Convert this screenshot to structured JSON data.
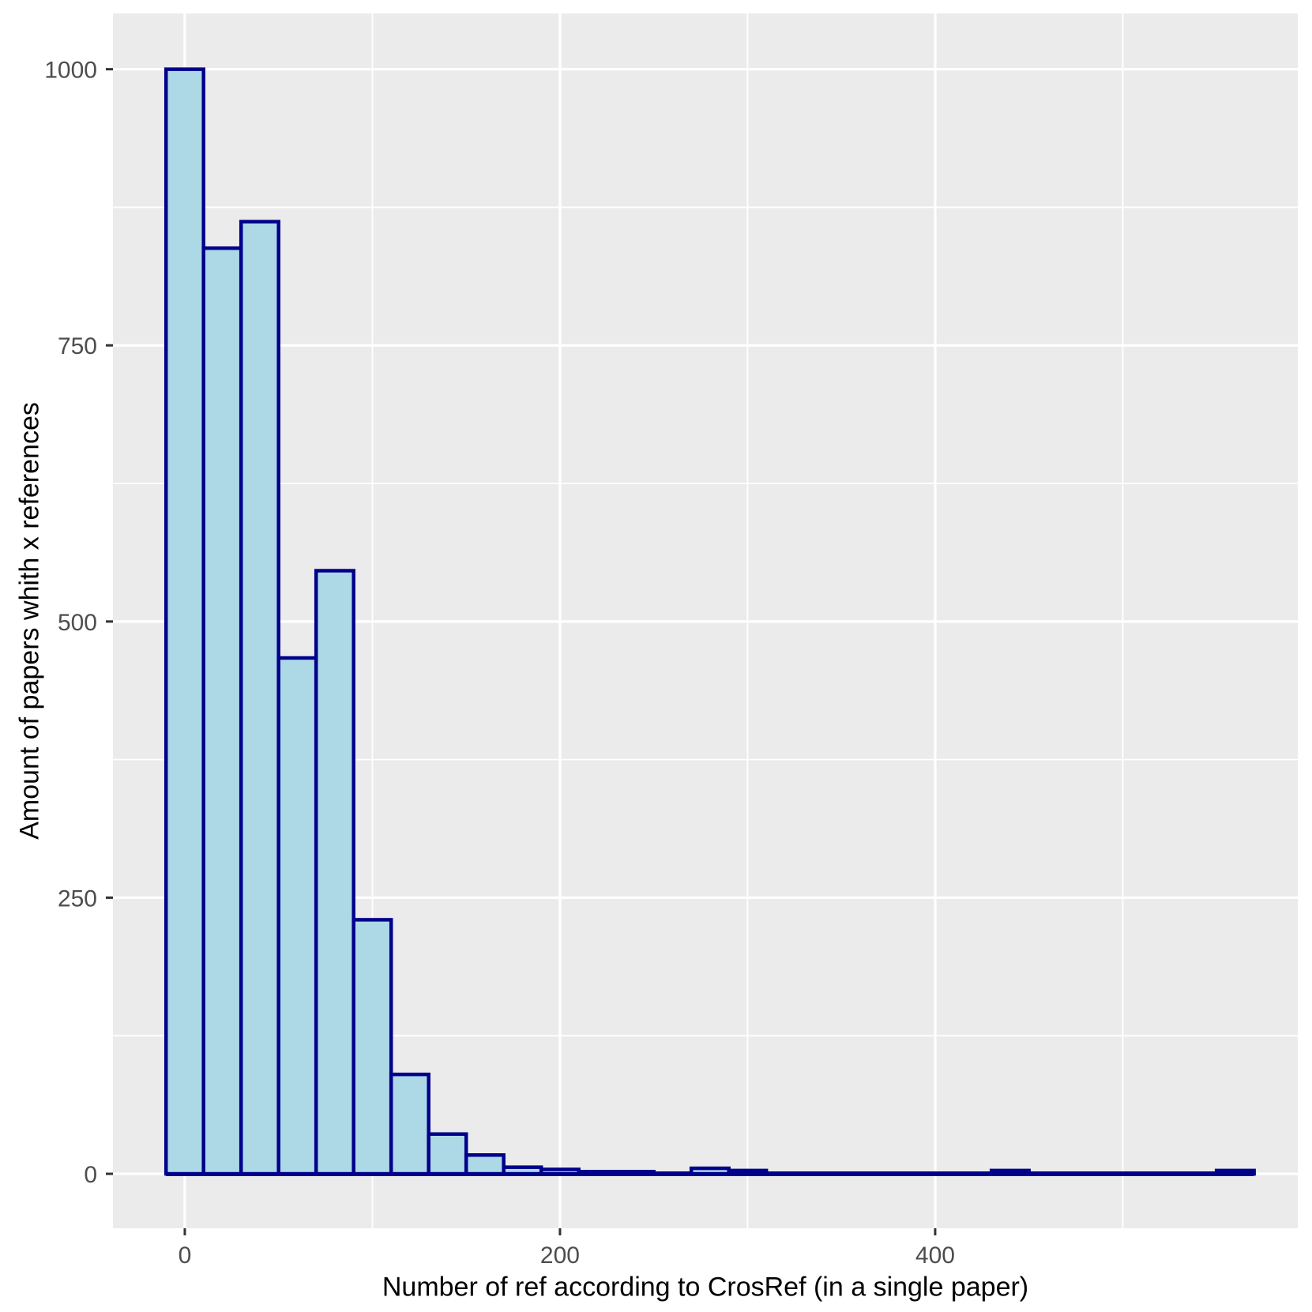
{
  "chart_data": {
    "type": "bar",
    "subtype": "histogram",
    "title": "",
    "xlabel": "Number of ref according to CrosRef (in a single paper)",
    "ylabel": "Amount of papers whith x references",
    "bin_start": -10,
    "bin_width": 20,
    "bin_centers": [
      0,
      20,
      40,
      60,
      80,
      100,
      120,
      140,
      160,
      180,
      200,
      220,
      240,
      260,
      280,
      300,
      320,
      340,
      360,
      380,
      400,
      420,
      440,
      460,
      480,
      500,
      520,
      540,
      560
    ],
    "values": [
      1000,
      838,
      862,
      467,
      546,
      230,
      90,
      36,
      17,
      6,
      4,
      2,
      2,
      0,
      5,
      3,
      0,
      0,
      0,
      0,
      0,
      0,
      3,
      0,
      0,
      0,
      0,
      0,
      3
    ],
    "x_ticks": {
      "major": [
        0,
        200,
        400
      ],
      "labels": [
        "0",
        "200",
        "400"
      ],
      "minor": [
        100,
        300,
        500
      ]
    },
    "y_ticks": {
      "major": [
        0,
        250,
        500,
        750,
        1000
      ],
      "labels": [
        "0",
        "250",
        "500",
        "750",
        "1000"
      ],
      "minor": [
        125,
        375,
        625,
        875
      ]
    },
    "x_domain": [
      -38.3,
      593.3
    ],
    "y_domain": [
      -49.3,
      1050.5
    ],
    "grid": true,
    "legend": "none"
  },
  "style": {
    "panel_bg": "#EBEBEB",
    "grid_color": "#FFFFFF",
    "major_grid_width": 3.2,
    "minor_grid_width": 1.8,
    "bar_fill": "#ADD8E6",
    "bar_stroke": "#00008B",
    "bar_stroke_width": 4.5,
    "baseline_width": 6,
    "tick_label_color": "#4D4D4D",
    "tick_mark_color": "#333333",
    "tick_mark_length": 9,
    "tick_mark_width": 3,
    "tick_label_size": 30,
    "axis_title_color": "#000000"
  }
}
